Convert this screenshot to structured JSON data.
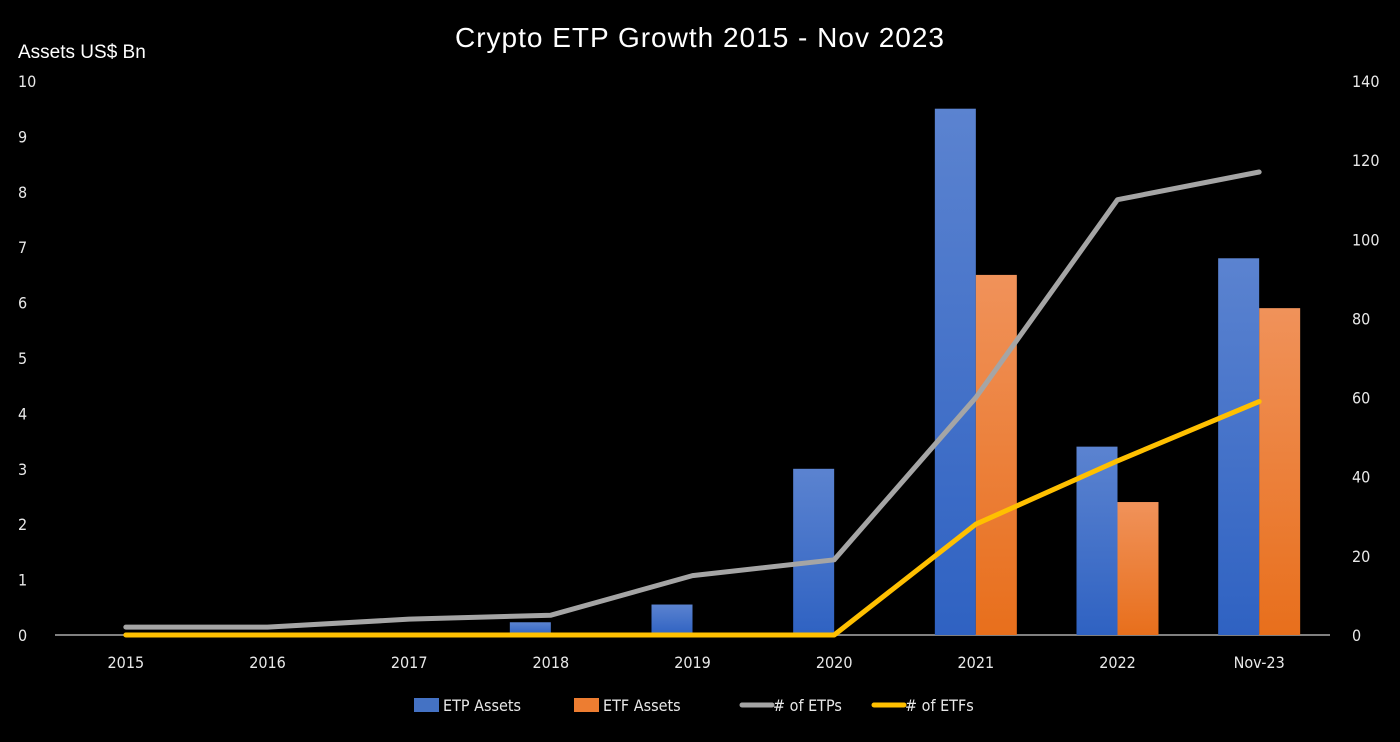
{
  "chart_data": {
    "type": "bar+line",
    "title": "Crypto ETP Growth 2015 - Nov 2023",
    "ylabel": "Assets US$ Bn",
    "y2label": "",
    "categories": [
      "2015",
      "2016",
      "2017",
      "2018",
      "2019",
      "2020",
      "2021",
      "2022",
      "Nov-23"
    ],
    "ylim": [
      0,
      10
    ],
    "y2lim": [
      0,
      140
    ],
    "yticks": [
      0,
      1,
      2,
      3,
      4,
      5,
      6,
      7,
      8,
      9,
      10
    ],
    "y2ticks": [
      0,
      20,
      40,
      60,
      80,
      100,
      120,
      140
    ],
    "grid": false,
    "legend": "bottom",
    "series": [
      {
        "name": "ETP Assets",
        "kind": "bar",
        "axis": "left",
        "color": "#4472c4",
        "values": [
          0,
          0,
          0,
          0.23,
          0.55,
          3.0,
          9.5,
          3.4,
          6.8
        ]
      },
      {
        "name": "ETF Assets",
        "kind": "bar",
        "axis": "left",
        "color": "#ed7d31",
        "values": [
          0,
          0,
          0,
          0,
          0,
          0,
          6.5,
          2.4,
          5.9
        ]
      },
      {
        "name": "# of ETPs",
        "kind": "line",
        "axis": "right",
        "color": "#a5a5a5",
        "values": [
          2,
          2,
          4,
          5,
          15,
          19,
          60,
          110,
          117
        ]
      },
      {
        "name": "# of ETFs",
        "kind": "line",
        "axis": "right",
        "color": "#ffc000",
        "values": [
          0,
          0,
          0,
          0,
          0,
          0,
          28,
          44,
          59
        ]
      }
    ]
  }
}
